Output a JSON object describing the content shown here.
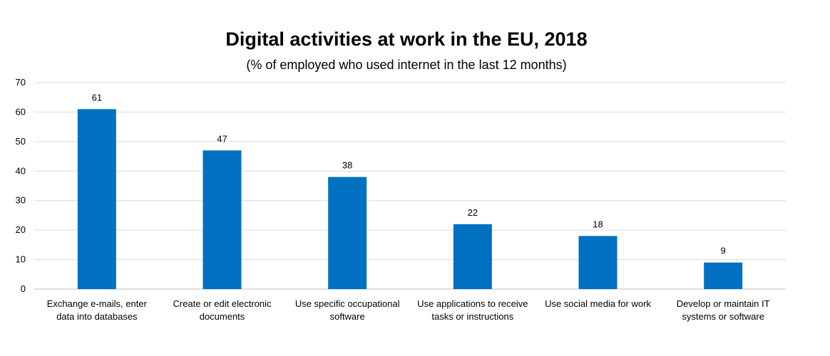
{
  "chart_data": {
    "type": "bar",
    "title": "Digital activities at work in the EU, 2018",
    "subtitle": "(% of employed who used internet in the last 12 months)",
    "categories": [
      [
        "Exchange e-mails, enter",
        "data into databases"
      ],
      [
        "Create or edit electronic",
        "documents"
      ],
      [
        "Use specific occupational",
        "software"
      ],
      [
        "Use applications to receive",
        "tasks or instructions"
      ],
      [
        "Use social media for work"
      ],
      [
        "Develop or maintain IT",
        "systems or software"
      ]
    ],
    "values": [
      61,
      47,
      38,
      22,
      18,
      9
    ],
    "xlabel": "",
    "ylabel": "",
    "ylim": [
      0,
      70
    ],
    "yticks": [
      0,
      10,
      20,
      30,
      40,
      50,
      60,
      70
    ],
    "grid": true,
    "bar_color": "#0070c0"
  }
}
